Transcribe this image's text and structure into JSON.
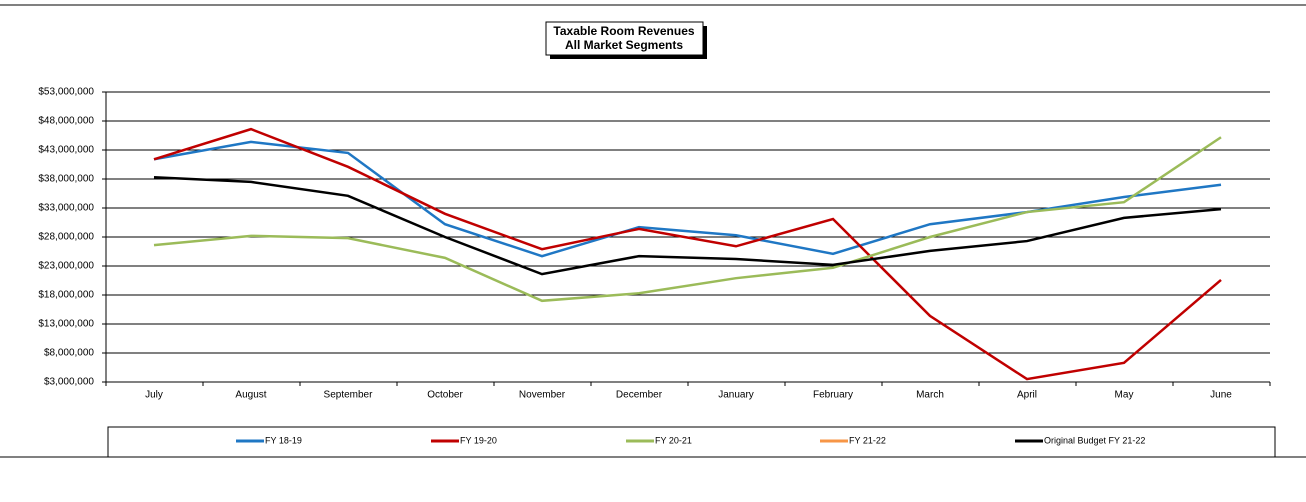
{
  "chart_data": {
    "type": "line",
    "title": "Taxable Room Revenues",
    "subtitle": "All Market Segments",
    "categories": [
      "July",
      "August",
      "September",
      "October",
      "November",
      "December",
      "January",
      "February",
      "March",
      "April",
      "May",
      "June"
    ],
    "series": [
      {
        "name": "FY 18-19",
        "color": "#1f77c4",
        "values": [
          41400000,
          44400000,
          42500000,
          30200000,
          24700000,
          29700000,
          28300000,
          25100000,
          30200000,
          32300000,
          34900000,
          37000000
        ]
      },
      {
        "name": "FY 19-20",
        "color": "#c00000",
        "values": [
          41400000,
          46600000,
          40100000,
          32000000,
          25900000,
          29400000,
          26400000,
          31100000,
          14400000,
          3500000,
          6300000,
          20600000
        ]
      },
      {
        "name": "FY 20-21",
        "color": "#9bbb59",
        "values": [
          26600000,
          28200000,
          27800000,
          24400000,
          17000000,
          18300000,
          20900000,
          22700000,
          28000000,
          32300000,
          34000000,
          45200000
        ]
      },
      {
        "name": "FY 21-22",
        "color": "#f79646",
        "values": [
          null,
          null,
          null,
          null,
          null,
          null,
          null,
          null,
          null,
          null,
          null,
          null
        ]
      },
      {
        "name": "Original Budget FY 21-22",
        "color": "#000000",
        "values": [
          38300000,
          37500000,
          35100000,
          28000000,
          21600000,
          24700000,
          24200000,
          23200000,
          25600000,
          27300000,
          31300000,
          32800000
        ]
      }
    ],
    "ylim": [
      3000000,
      53000000
    ],
    "yticks": [
      {
        "value": 3000000,
        "label": "$3,000,000"
      },
      {
        "value": 8000000,
        "label": "$8,000,000"
      },
      {
        "value": 13000000,
        "label": "$13,000,000"
      },
      {
        "value": 18000000,
        "label": "$18,000,000"
      },
      {
        "value": 23000000,
        "label": "$23,000,000"
      },
      {
        "value": 28000000,
        "label": "$28,000,000"
      },
      {
        "value": 33000000,
        "label": "$33,000,000"
      },
      {
        "value": 38000000,
        "label": "$38,000,000"
      },
      {
        "value": 43000000,
        "label": "$43,000,000"
      },
      {
        "value": 48000000,
        "label": "$48,000,000"
      },
      {
        "value": 53000000,
        "label": "$53,000,000"
      }
    ],
    "grid": true,
    "legend": "bottom"
  }
}
